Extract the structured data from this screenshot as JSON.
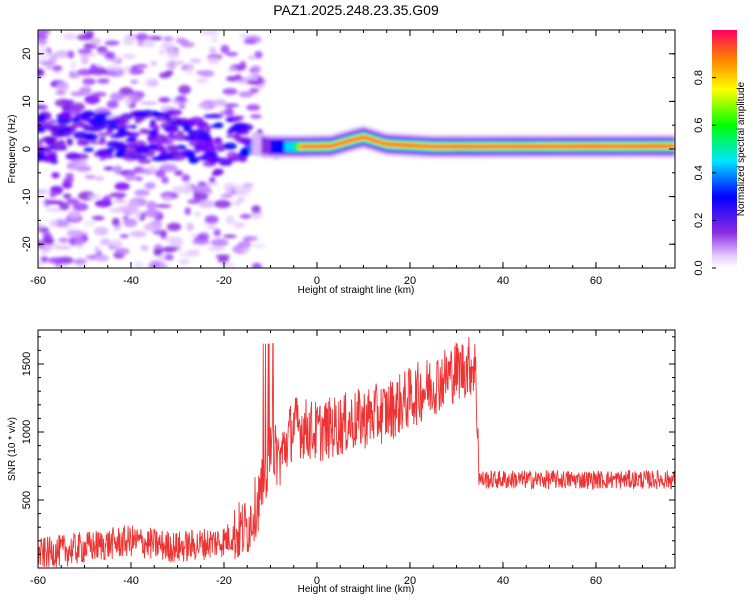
{
  "title": "PAZ1.2025.248.23.35.G09",
  "chart_data": [
    {
      "type": "heatmap",
      "xlabel": "Height of straight line (km)",
      "ylabel": "Frequency (Hz)",
      "xlim": [
        -60,
        77
      ],
      "ylim": [
        -25,
        25
      ],
      "xticks": [
        -60,
        -40,
        -20,
        0,
        20,
        40,
        60
      ],
      "yticks": [
        -20,
        -10,
        0,
        10,
        20
      ],
      "colorbar": {
        "label": "Normalized spectral amplitude",
        "range": [
          0,
          1
        ],
        "ticks": [
          "0.0",
          "0.2",
          "0.4",
          "0.6",
          "0.8"
        ]
      },
      "ridge_frequency_hz": [
        {
          "x": -60,
          "f": 2
        },
        {
          "x": -40,
          "f": 3
        },
        {
          "x": -20,
          "f": 2
        },
        {
          "x": -10,
          "f": 0.5
        },
        {
          "x": -3,
          "f": 0.5
        },
        {
          "x": 3,
          "f": 0.6
        },
        {
          "x": 8,
          "f": 2
        },
        {
          "x": 10,
          "f": 2.5
        },
        {
          "x": 15,
          "f": 1
        },
        {
          "x": 25,
          "f": 0.5
        },
        {
          "x": 77,
          "f": 0.6
        }
      ]
    },
    {
      "type": "line",
      "xlabel": "Height of straight line (km)",
      "ylabel": "SNR (10 * v/v)",
      "xlim": [
        -60,
        77
      ],
      "ylim": [
        0,
        1750
      ],
      "xticks": [
        -60,
        -40,
        -20,
        0,
        20,
        40,
        60
      ],
      "yticks": [
        500,
        1000,
        1500
      ],
      "series": [
        {
          "name": "SNR",
          "color": "#ee3333",
          "x": [
            -60,
            -50,
            -40,
            -30,
            -20,
            -15,
            -12,
            -10,
            -8,
            -5,
            0,
            5,
            10,
            15,
            20,
            25,
            30,
            34,
            35,
            40,
            50,
            60,
            70,
            77
          ],
          "values": [
            100,
            150,
            200,
            150,
            200,
            300,
            550,
            900,
            800,
            1050,
            1000,
            1050,
            1100,
            1150,
            1250,
            1350,
            1450,
            1500,
            650,
            650,
            650,
            650,
            650,
            650
          ]
        }
      ]
    }
  ]
}
